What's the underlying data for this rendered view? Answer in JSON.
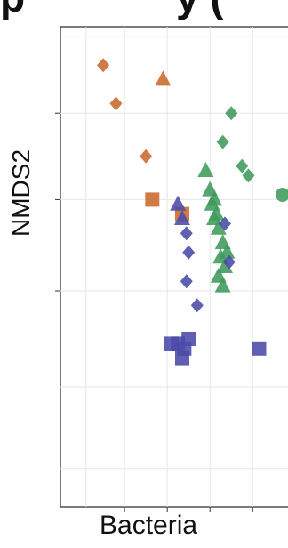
{
  "figure": {
    "top_text_fragment": "p",
    "top_text_fragment_right": "y (",
    "x_axis_caption": "Bacteria"
  },
  "chart_data": {
    "type": "scatter",
    "title": "",
    "xlabel": "",
    "ylabel": "NMDS2",
    "grid": true,
    "legend": "none",
    "colors": {
      "orange": "#c8692a",
      "green": "#3f9a5b",
      "blue": "#4a4aa8"
    },
    "series": [
      {
        "color": "orange",
        "marker": "diamond",
        "points": [
          [
            0.2,
            0.92
          ],
          [
            0.26,
            0.84
          ],
          [
            0.4,
            0.73
          ]
        ]
      },
      {
        "color": "orange",
        "marker": "triangle",
        "points": [
          [
            0.48,
            0.89
          ]
        ]
      },
      {
        "color": "orange",
        "marker": "square",
        "points": [
          [
            0.43,
            0.64
          ],
          [
            0.57,
            0.61
          ]
        ]
      },
      {
        "color": "green",
        "marker": "diamond",
        "points": [
          [
            0.8,
            0.82
          ],
          [
            0.76,
            0.76
          ],
          [
            0.88,
            0.69
          ],
          [
            0.85,
            0.71
          ]
        ]
      },
      {
        "color": "green",
        "marker": "circle",
        "points": [
          [
            1.04,
            0.65
          ]
        ]
      },
      {
        "color": "green",
        "marker": "triangle",
        "points": [
          [
            0.68,
            0.7
          ],
          [
            0.7,
            0.66
          ],
          [
            0.72,
            0.64
          ],
          [
            0.73,
            0.61
          ],
          [
            0.74,
            0.58
          ],
          [
            0.76,
            0.55
          ],
          [
            0.75,
            0.52
          ],
          [
            0.77,
            0.5
          ],
          [
            0.74,
            0.48
          ],
          [
            0.72,
            0.6
          ],
          [
            0.71,
            0.63
          ],
          [
            0.78,
            0.53
          ],
          [
            0.76,
            0.46
          ]
        ]
      },
      {
        "color": "blue",
        "marker": "triangle",
        "points": [
          [
            0.55,
            0.63
          ],
          [
            0.57,
            0.6
          ]
        ]
      },
      {
        "color": "blue",
        "marker": "diamond",
        "points": [
          [
            0.59,
            0.57
          ],
          [
            0.6,
            0.53
          ],
          [
            0.59,
            0.47
          ],
          [
            0.64,
            0.42
          ],
          [
            0.77,
            0.59
          ],
          [
            0.79,
            0.51
          ]
        ]
      },
      {
        "color": "blue",
        "marker": "square",
        "points": [
          [
            0.52,
            0.34
          ],
          [
            0.55,
            0.34
          ],
          [
            0.58,
            0.33
          ],
          [
            0.6,
            0.35
          ],
          [
            0.57,
            0.31
          ],
          [
            0.93,
            0.33
          ]
        ]
      }
    ]
  }
}
